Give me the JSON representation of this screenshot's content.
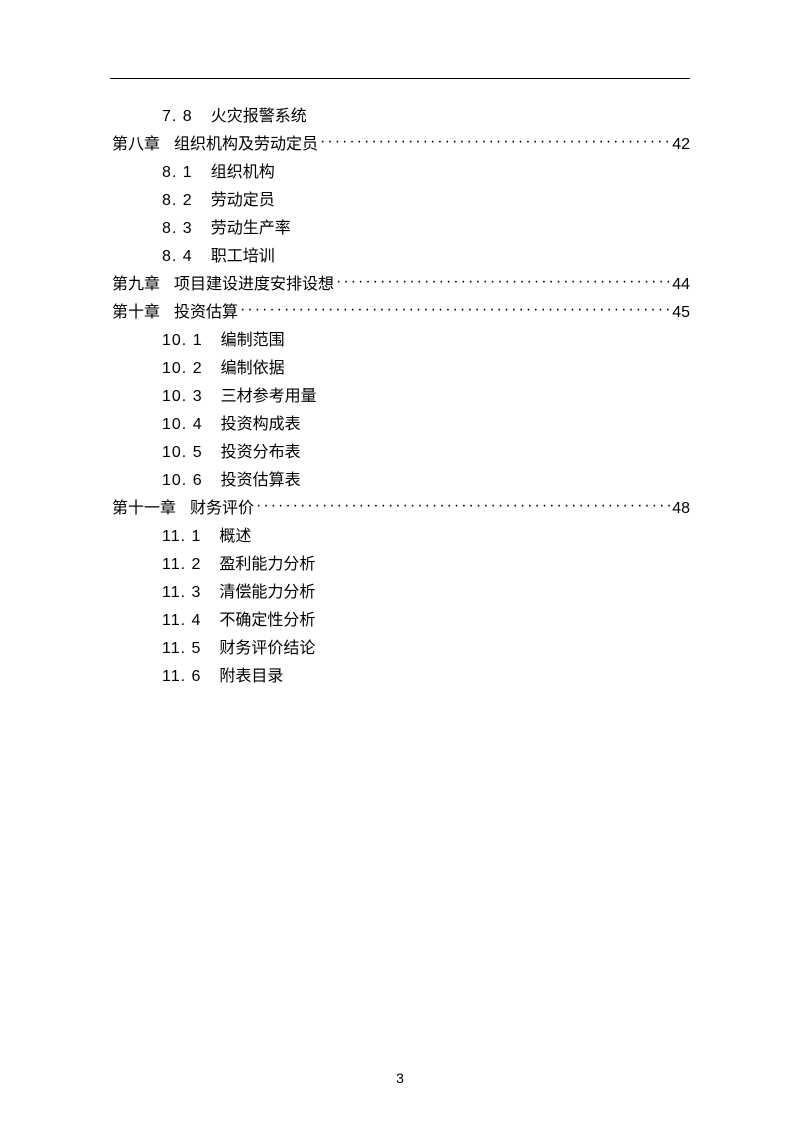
{
  "page_number": "3",
  "toc": [
    {
      "type": "sub",
      "num": "7. 8",
      "title": "火灾报警系统"
    },
    {
      "type": "chapter",
      "label": "第八章",
      "title": "组织机构及劳动定员",
      "page": "42"
    },
    {
      "type": "sub",
      "num": "8. 1",
      "title": "组织机构"
    },
    {
      "type": "sub",
      "num": "8. 2",
      "title": "劳动定员"
    },
    {
      "type": "sub",
      "num": "8. 3",
      "title": "劳动生产率"
    },
    {
      "type": "sub",
      "num": "8. 4",
      "title": "职工培训"
    },
    {
      "type": "chapter",
      "label": "第九章",
      "title": "项目建设进度安排设想",
      "page": "44"
    },
    {
      "type": "chapter",
      "label": "第十章",
      "title": "投资估算",
      "page": "45"
    },
    {
      "type": "sub",
      "num": "10. 1",
      "title": "编制范围"
    },
    {
      "type": "sub",
      "num": "10. 2",
      "title": "编制依据"
    },
    {
      "type": "sub",
      "num": "10. 3",
      "title": "三材参考用量"
    },
    {
      "type": "sub",
      "num": "10. 4",
      "title": "投资构成表"
    },
    {
      "type": "sub",
      "num": "10. 5",
      "title": "投资分布表"
    },
    {
      "type": "sub",
      "num": "10. 6",
      "title": "投资估算表"
    },
    {
      "type": "chapter",
      "label": "第十一章",
      "title": "财务评价",
      "page": "48"
    },
    {
      "type": "sub",
      "num": "11. 1",
      "title": "概述"
    },
    {
      "type": "sub",
      "num": "11. 2",
      "title": "盈利能力分析"
    },
    {
      "type": "sub",
      "num": "11. 3",
      "title": "清偿能力分析"
    },
    {
      "type": "sub",
      "num": "11. 4",
      "title": "不确定性分析"
    },
    {
      "type": "sub",
      "num": "11. 5",
      "title": "财务评价结论"
    },
    {
      "type": "sub",
      "num": "11. 6",
      "title": "附表目录"
    }
  ]
}
